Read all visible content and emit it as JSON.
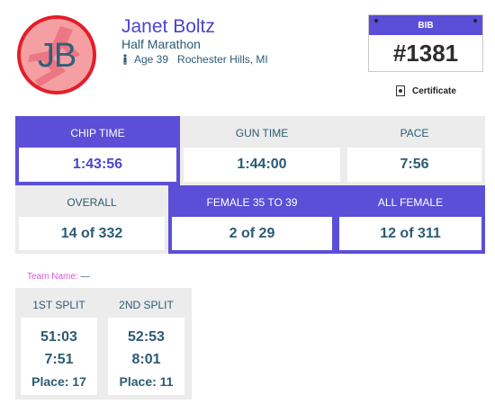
{
  "athlete": {
    "initials": "JB",
    "name": "Janet Boltz",
    "race": "Half Marathon",
    "age": "Age 39",
    "location": "Rochester Hills, MI"
  },
  "bib": {
    "label": "BIB",
    "number": "#1381"
  },
  "certificate": {
    "label": "Certificate"
  },
  "times": {
    "chip": {
      "label": "CHIP TIME",
      "value": "1:43:56"
    },
    "gun": {
      "label": "GUN TIME",
      "value": "1:44:00"
    },
    "pace": {
      "label": "PACE",
      "value": "7:56"
    }
  },
  "rankings": {
    "overall": {
      "label": "OVERALL",
      "value": "14 of 332"
    },
    "division": {
      "label": "FEMALE 35 TO 39",
      "value": "2 of 29"
    },
    "gender": {
      "label": "ALL FEMALE",
      "value": "12 of 311"
    }
  },
  "team": {
    "label": "Team Name:",
    "value": "—"
  },
  "splits": [
    {
      "label": "1ST SPLIT",
      "time": "51:03",
      "pace": "7:51",
      "place": "Place: 17"
    },
    {
      "label": "2ND SPLIT",
      "time": "52:53",
      "pace": "8:01",
      "place": "Place: 11"
    }
  ],
  "colors": {
    "accent": "#5a4fd6",
    "name": "#4a44cf",
    "text": "#2b5b74",
    "avatar_ring": "#e31e2a",
    "avatar_fill": "#f59fa3",
    "team_label": "#d658d6"
  }
}
